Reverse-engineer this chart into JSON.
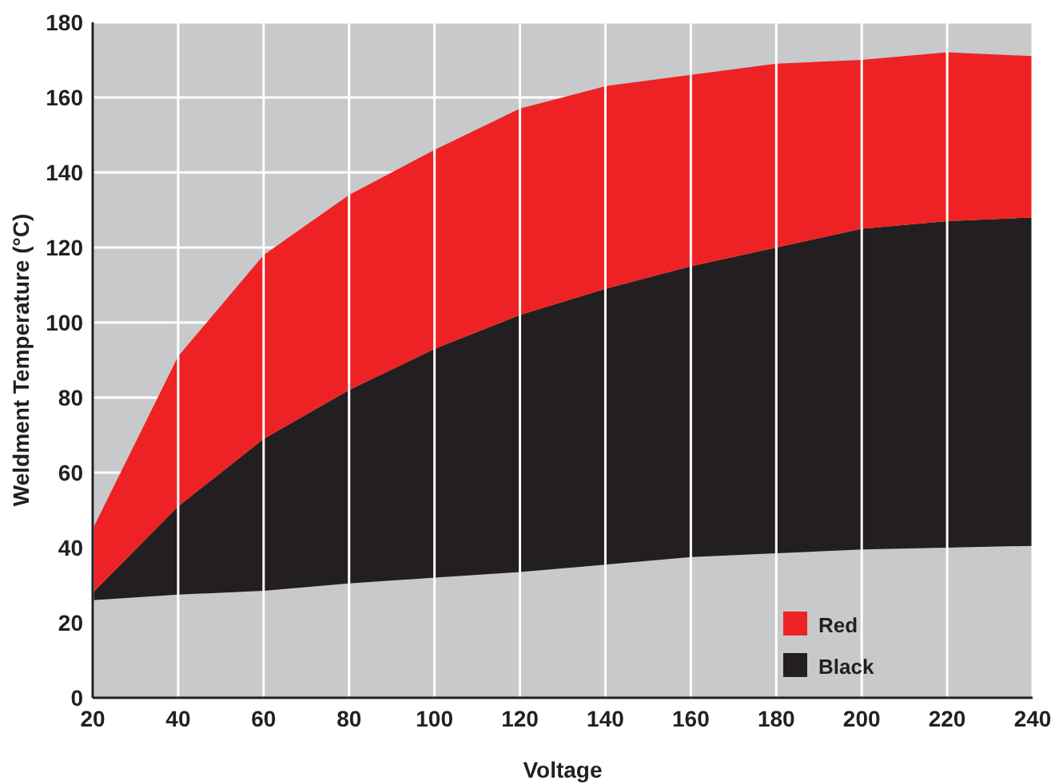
{
  "chart_data": {
    "type": "area",
    "stacked": true,
    "xlabel": "Voltage",
    "ylabel": "Weldment Temperature (°C)",
    "x": [
      20,
      40,
      60,
      80,
      100,
      120,
      140,
      160,
      180,
      200,
      220,
      240
    ],
    "series": [
      {
        "color": "#c8c9cb",
        "values": [
          26,
          27.5,
          28.5,
          30.5,
          32,
          33.5,
          35.5,
          37.5,
          38.5,
          39.5,
          40,
          40.5
        ]
      },
      {
        "name": "Black",
        "color": "#231f20",
        "values": [
          2,
          23.5,
          40.5,
          51.5,
          61,
          68.5,
          73.5,
          77.5,
          81.5,
          85.5,
          87,
          87.5
        ]
      },
      {
        "name": "Red",
        "color": "#ee2224",
        "values": [
          17,
          40,
          49,
          52,
          53,
          55,
          54,
          51,
          49,
          45,
          45,
          43
        ]
      }
    ],
    "xlim": [
      20,
      240
    ],
    "xticks": [
      20,
      40,
      60,
      80,
      100,
      120,
      140,
      160,
      180,
      200,
      220,
      240
    ],
    "ylim": [
      0,
      180
    ],
    "yticks": [
      0,
      20,
      40,
      60,
      80,
      100,
      120,
      140,
      160,
      180
    ],
    "grid": true,
    "legend": "bottom right"
  }
}
